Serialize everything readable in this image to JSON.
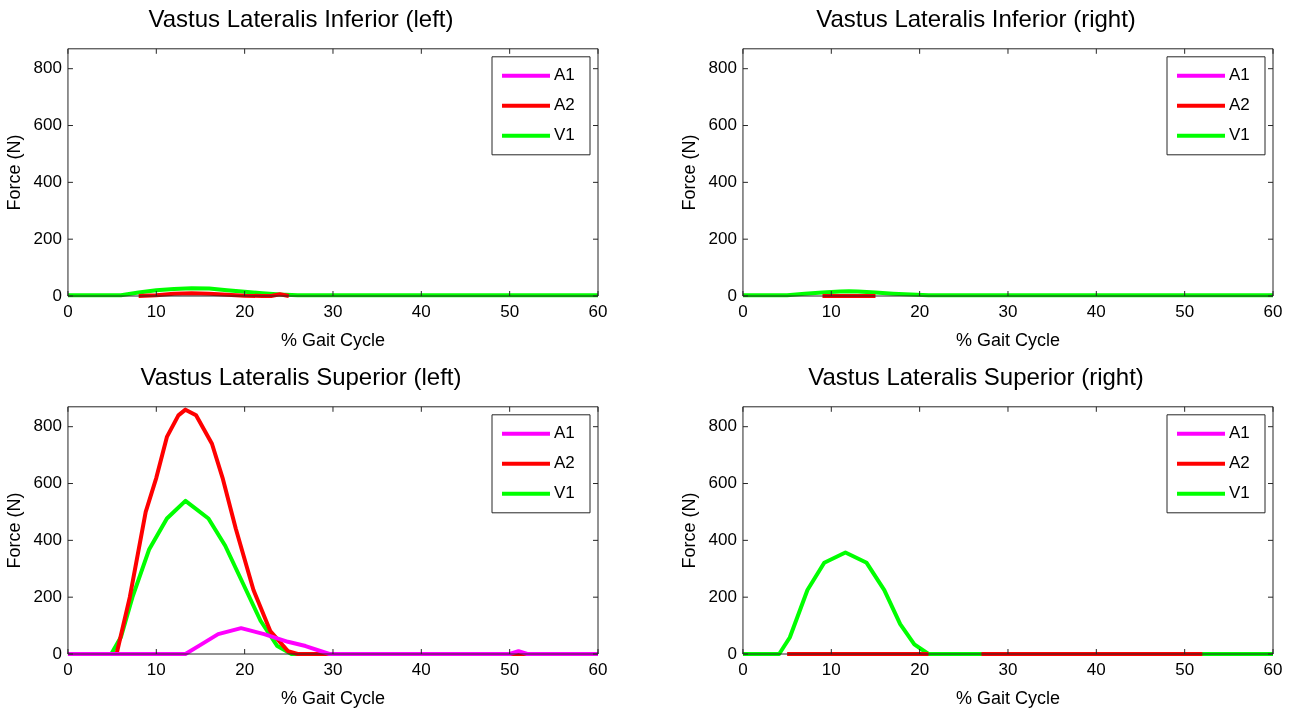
{
  "chart_data": [
    {
      "type": "line",
      "title": "Vastus Lateralis Inferior (left)",
      "xlabel": "% Gait Cycle",
      "ylabel": "Force (N)",
      "xlim": [
        0,
        60
      ],
      "xticks": [
        0,
        10,
        20,
        30,
        40,
        50,
        60
      ],
      "ylim": [
        0,
        870
      ],
      "yticks": [
        0,
        200,
        400,
        600,
        800
      ],
      "legend": "top right",
      "series": [
        {
          "name": "A1",
          "color": "#ff00ff"
        },
        {
          "name": "A2",
          "color": "#ff0000",
          "x": [
            8,
            10,
            12,
            14,
            16,
            18,
            20,
            22,
            23,
            24,
            25
          ],
          "values": [
            0,
            3,
            8,
            10,
            8,
            4,
            1,
            0,
            0,
            6,
            0
          ]
        },
        {
          "name": "V1",
          "color": "#00ff00",
          "x": [
            0,
            6,
            8,
            10,
            12,
            14,
            16,
            18,
            20,
            22,
            24,
            26,
            28,
            60
          ],
          "values": [
            3,
            3,
            12,
            20,
            25,
            27,
            26,
            20,
            15,
            10,
            5,
            3,
            3,
            3
          ]
        }
      ]
    },
    {
      "type": "line",
      "title": "Vastus Lateralis Inferior (right)",
      "xlabel": "% Gait Cycle",
      "ylabel": "Force (N)",
      "xlim": [
        0,
        60
      ],
      "xticks": [
        0,
        10,
        20,
        30,
        40,
        50,
        60
      ],
      "ylim": [
        0,
        870
      ],
      "yticks": [
        0,
        200,
        400,
        600,
        800
      ],
      "legend": "top right",
      "series": [
        {
          "name": "A1",
          "color": "#ff00ff"
        },
        {
          "name": "A2",
          "color": "#ff0000",
          "x": [
            9,
            15
          ],
          "values": [
            0,
            0
          ]
        },
        {
          "name": "V1",
          "color": "#00ff00",
          "x": [
            0,
            5,
            7,
            9,
            11,
            12,
            13,
            15,
            17,
            19,
            21,
            60
          ],
          "values": [
            3,
            3,
            8,
            12,
            16,
            17,
            16,
            12,
            8,
            5,
            3,
            3
          ]
        }
      ]
    },
    {
      "type": "line",
      "title": "Vastus Lateralis Superior (left)",
      "xlabel": "% Gait Cycle",
      "ylabel": "Force (N)",
      "xlim": [
        0,
        60
      ],
      "xticks": [
        0,
        10,
        20,
        30,
        40,
        50,
        60
      ],
      "ylim": [
        0,
        870
      ],
      "yticks": [
        0,
        200,
        400,
        600,
        800
      ],
      "legend": "top right",
      "series": [
        {
          "name": "A1",
          "color": "#ff00ff",
          "x": [
            0,
            13.3,
            15.1,
            17,
            19.6,
            22.2,
            24.9,
            26.9,
            29.6,
            50,
            51,
            52,
            60
          ],
          "values": [
            0,
            0,
            34,
            70,
            91,
            70,
            43,
            28,
            0,
            0,
            10,
            0,
            0
          ]
        },
        {
          "name": "A2",
          "color": "#ff0000",
          "x": [
            0,
            5.5,
            7,
            8.8,
            10,
            11.2,
            12.5,
            13.3,
            14.5,
            16.3,
            17.5,
            19,
            21,
            22.9,
            24.9,
            26,
            60
          ],
          "values": [
            0,
            0,
            200,
            500,
            620,
            764,
            840,
            860,
            840,
            740,
            620,
            441,
            225,
            81,
            10,
            0,
            0
          ]
        },
        {
          "name": "V1",
          "color": "#00ff00",
          "x": [
            0,
            4.9,
            6,
            7.3,
            9.2,
            11.2,
            13.3,
            15.9,
            17.8,
            19.8,
            21.8,
            23.7,
            25.3,
            60
          ],
          "values": [
            0,
            0,
            60,
            200,
            369,
            477,
            539,
            477,
            381,
            249,
            117,
            28,
            0,
            0
          ]
        }
      ]
    },
    {
      "type": "line",
      "title": "Vastus Lateralis Superior (right)",
      "xlabel": "% Gait Cycle",
      "ylabel": "Force (N)",
      "xlim": [
        0,
        60
      ],
      "xticks": [
        0,
        10,
        20,
        30,
        40,
        50,
        60
      ],
      "ylim": [
        0,
        870
      ],
      "yticks": [
        0,
        200,
        400,
        600,
        800
      ],
      "legend": "top right",
      "series": [
        {
          "name": "A1",
          "color": "#ff00ff"
        },
        {
          "name": "A2",
          "color": "#ff0000",
          "x": [
            5,
            21,
            24,
            27,
            52
          ],
          "values": [
            0,
            0,
            null,
            0,
            0
          ]
        },
        {
          "name": "V1",
          "color": "#00ff00",
          "x": [
            0,
            4.1,
            5.3,
            7.3,
            9.2,
            11.6,
            14,
            16,
            17.8,
            19.4,
            21,
            60
          ],
          "values": [
            0,
            0,
            58,
            225,
            321,
            357,
            321,
            225,
            105,
            34,
            0,
            0
          ]
        }
      ]
    }
  ]
}
